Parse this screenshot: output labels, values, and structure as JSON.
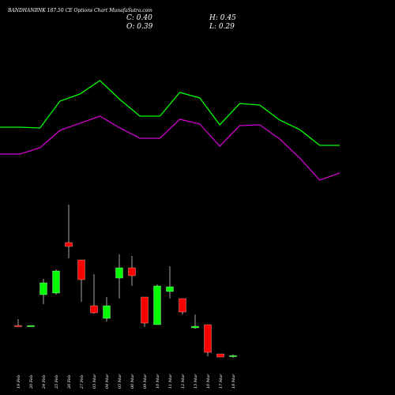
{
  "chart_data": {
    "type": "candlestick",
    "title": "BANDHANBNK 187.50 CE Options Chart MunafaSutra.com",
    "header": {
      "close": "C: 0.40",
      "open": "O: 0.39",
      "high": "H: 0.45",
      "low": "L: 0.29"
    },
    "categories": [
      "19 Feb",
      "20 Feb",
      "24 Feb",
      "25 Feb",
      "26 Feb",
      "27 Feb",
      "03 Mar",
      "04 Mar",
      "05 Mar",
      "06 Mar",
      "09 Mar",
      "10 Mar",
      "11 Mar",
      "12 Mar",
      "13 Mar",
      "16 Mar",
      "17 Mar",
      "18 Mar"
    ],
    "open": [
      1.92,
      1.9,
      3.48,
      3.56,
      6.12,
      5.24,
      2.92,
      2.28,
      4.32,
      4.84,
      3.36,
      1.96,
      3.64,
      3.28,
      1.8,
      1.96,
      0.48,
      0.39
    ],
    "close": [
      1.88,
      1.92,
      4.08,
      4.68,
      5.92,
      4.24,
      2.56,
      2.92,
      4.84,
      4.44,
      2.04,
      3.92,
      3.88,
      2.6,
      1.88,
      0.56,
      0.32,
      0.4
    ],
    "high": [
      2.24,
      1.92,
      4.28,
      4.76,
      8.04,
      5.24,
      4.52,
      3.36,
      5.52,
      5.44,
      3.36,
      4.0,
      4.92,
      3.28,
      2.48,
      1.96,
      0.48,
      0.45
    ],
    "low": [
      1.88,
      1.88,
      3.0,
      3.48,
      5.32,
      3.12,
      2.52,
      2.12,
      3.28,
      3.92,
      1.84,
      1.96,
      3.28,
      2.48,
      1.76,
      0.36,
      0.32,
      0.29
    ],
    "up_color": "#00ff00",
    "down_color": "#ff0000",
    "series": [
      {
        "color": "#00ff00",
        "values": [
          11.96,
          11.96,
          11.92,
          13.28,
          13.64,
          14.32,
          13.36,
          12.52,
          12.52,
          13.72,
          13.44,
          12.08,
          13.16,
          13.08,
          12.32,
          11.84,
          11.04,
          11.04
        ]
      },
      {
        "color": "#cc00cc",
        "values": [
          10.6,
          10.6,
          10.92,
          11.8,
          12.16,
          12.52,
          11.92,
          11.4,
          11.4,
          12.36,
          12.12,
          11.0,
          12.04,
          12.08,
          11.36,
          10.4,
          9.28,
          9.64
        ]
      }
    ],
    "ylim": [
      0,
      15.2
    ]
  }
}
